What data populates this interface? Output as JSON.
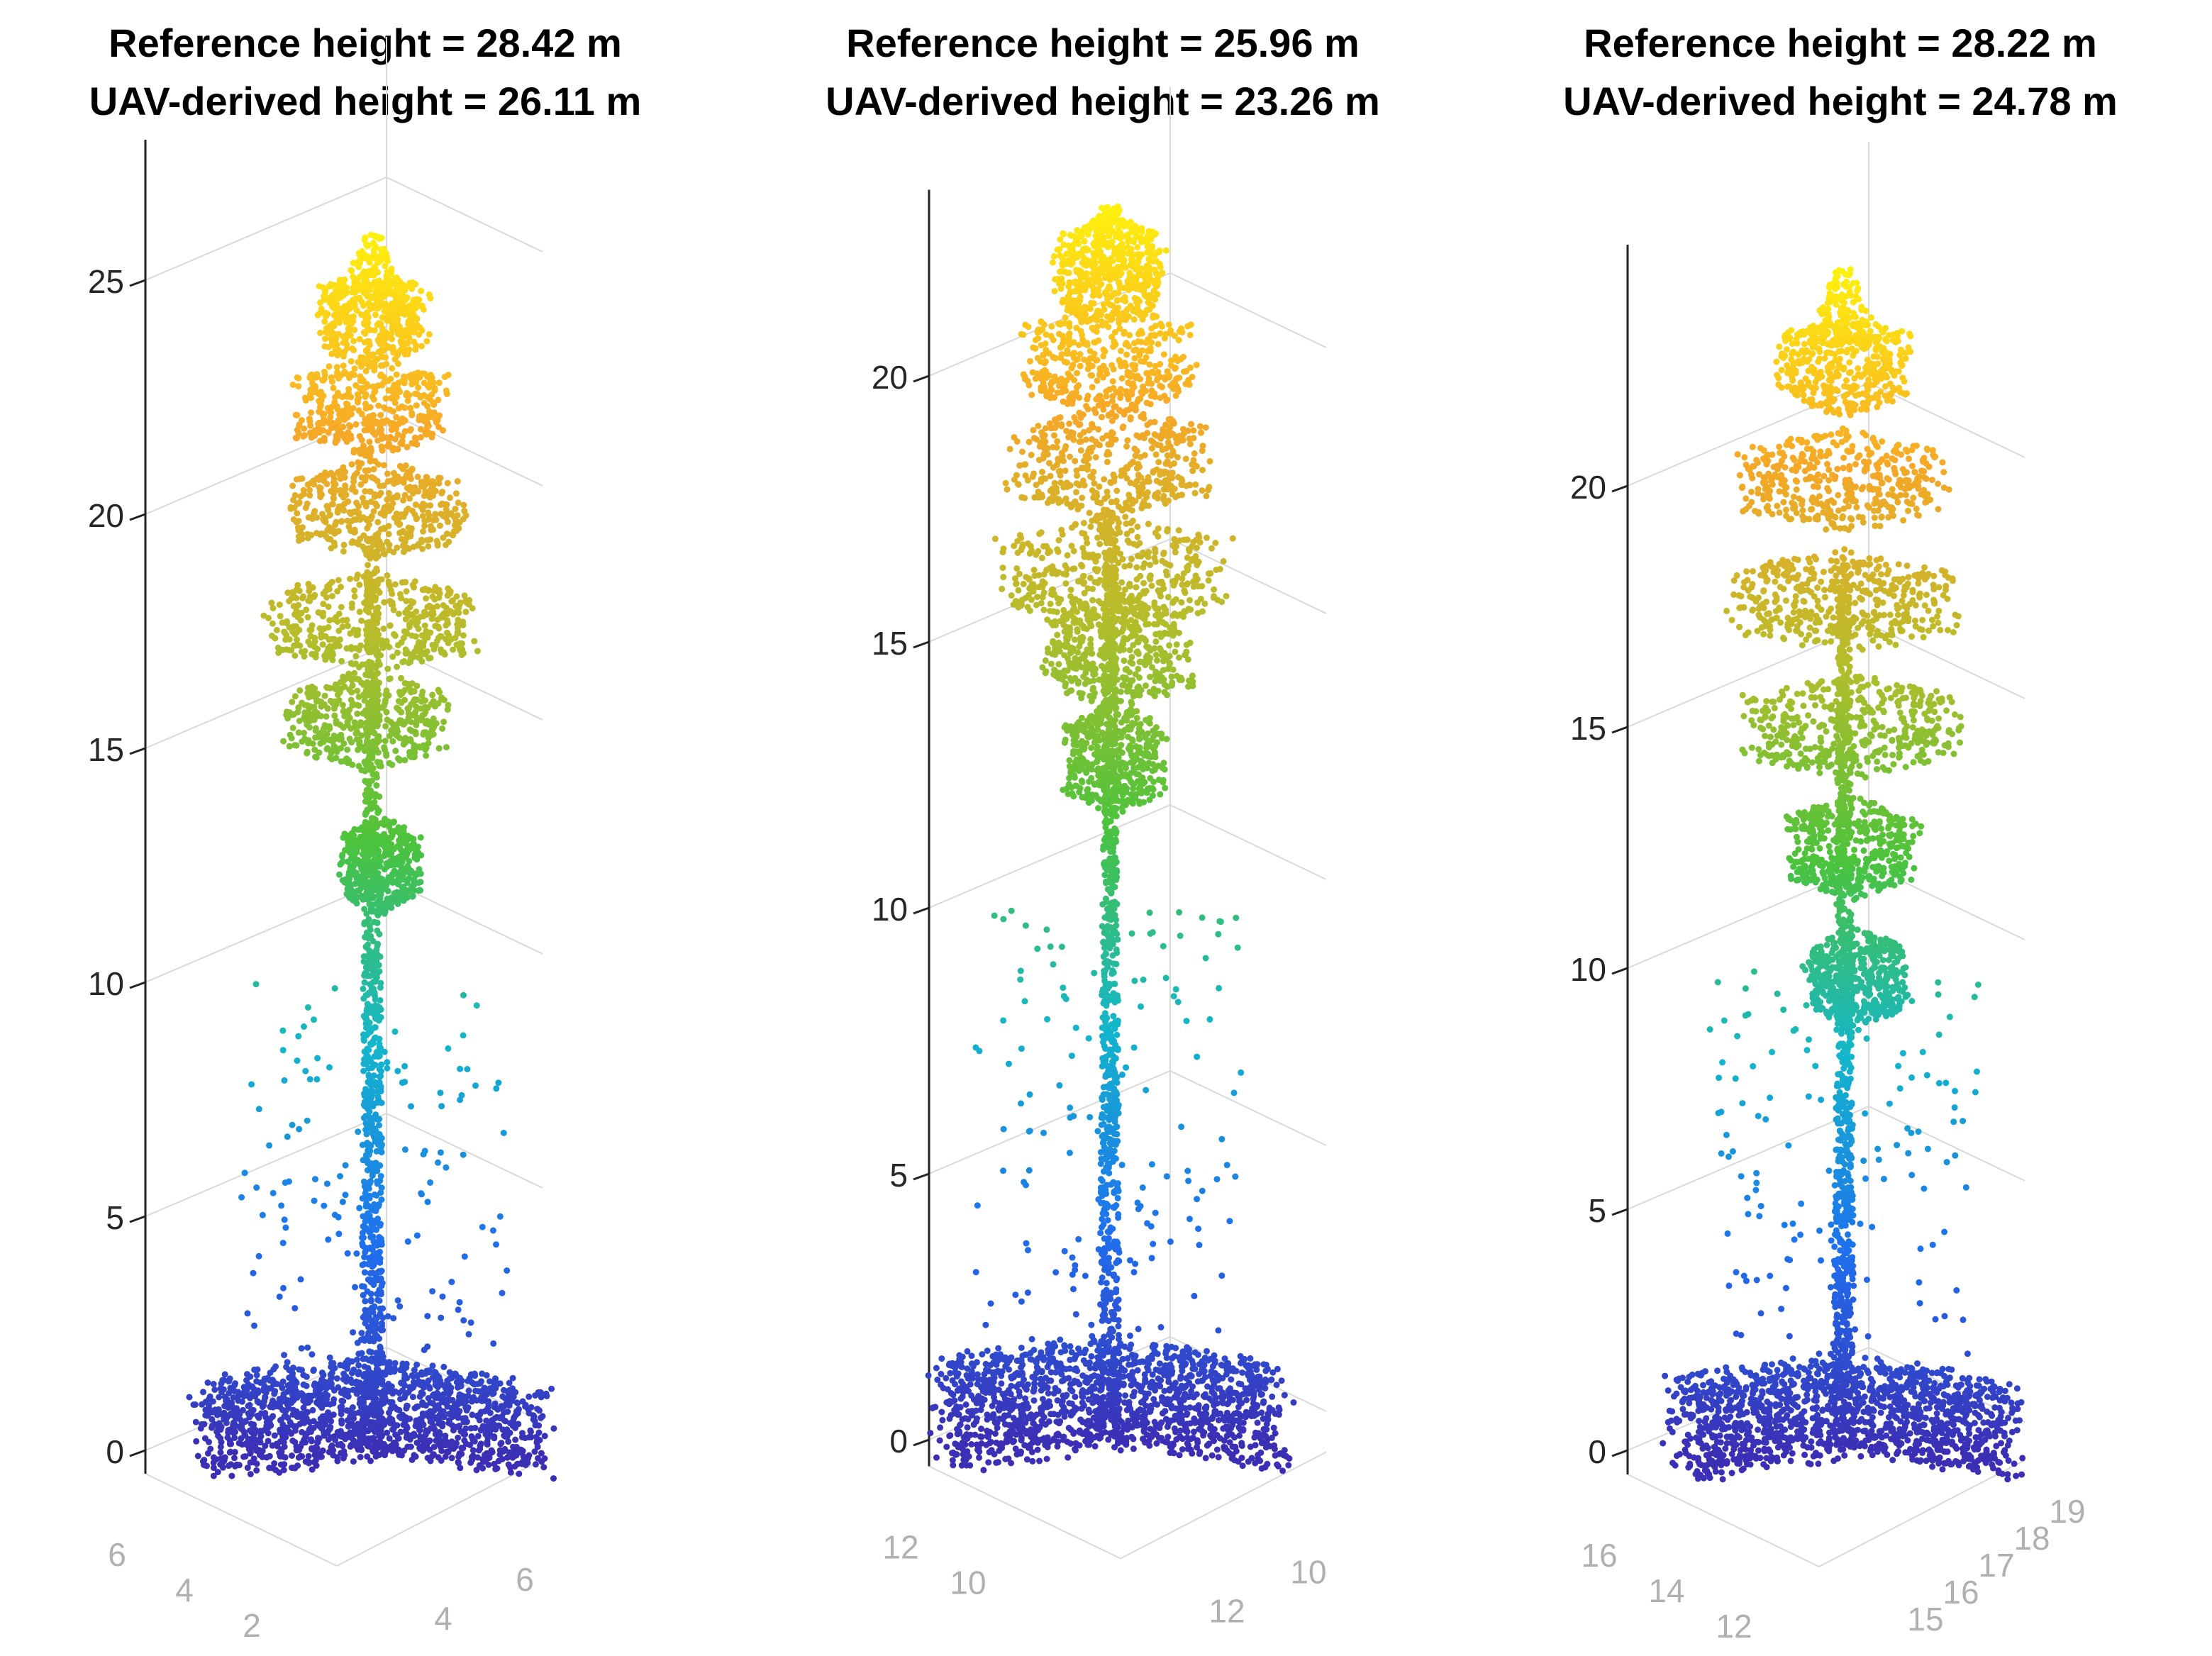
{
  "figure": {
    "description_colors": {
      "ground": "#3b2fb5",
      "lower_trunk": "#1f6fee",
      "mid_trunk": "#13b6cc",
      "lower_crown": "#4cc33c",
      "mid_crown": "#b5bd2a",
      "upper_crown": "#f6a727",
      "top": "#fff10d"
    },
    "axis_colors": {
      "vertical_axis": "#222222",
      "grid": "#d9d9d9",
      "horizontal_tick_text": "#b0b0b0",
      "vertical_tick_text": "#262626"
    }
  },
  "chart_data": [
    {
      "type": "scatter",
      "title": [
        "Reference height = 28.42 m",
        "UAV-derived height = 26.11 m"
      ],
      "reference_height_m": 28.42,
      "uav_height_m": 26.11,
      "zlim": [
        -0.5,
        28
      ],
      "z_ticks": [
        0,
        5,
        10,
        15,
        20,
        25
      ],
      "x_ticks_left": [
        "6",
        "4",
        "2"
      ],
      "x_ticks_right": [
        "4",
        "6"
      ],
      "tree_top_z": 26,
      "trunk_width": 0.6,
      "crown_layers": [
        {
          "z": 12.5,
          "w": 2.2,
          "off": 0.2
        },
        {
          "z": 15.6,
          "w": 4.4,
          "off": -0.2
        },
        {
          "z": 17.7,
          "w": 5.8,
          "off": 0.0
        },
        {
          "z": 20.1,
          "w": 4.8,
          "off": 0.1
        },
        {
          "z": 22.3,
          "w": 4.2,
          "off": 0.0
        },
        {
          "z": 24.2,
          "w": 3.0,
          "off": 0.0
        }
      ]
    },
    {
      "type": "scatter",
      "title": [
        "Reference height = 25.96 m",
        "UAV-derived height = 23.26 m"
      ],
      "reference_height_m": 25.96,
      "uav_height_m": 23.26,
      "zlim": [
        -0.5,
        23.5
      ],
      "z_ticks": [
        0,
        5,
        10,
        15,
        20
      ],
      "x_ticks_left": [
        "12",
        "10"
      ],
      "x_ticks_right": [
        "12",
        "10"
      ],
      "tree_top_z": 23.2,
      "trunk_width": 0.55,
      "crown_layers": [
        {
          "z": 12.8,
          "w": 2.8,
          "off": 0.1
        },
        {
          "z": 14.8,
          "w": 4.0,
          "off": 0.2
        },
        {
          "z": 16.3,
          "w": 6.2,
          "off": 0.1
        },
        {
          "z": 18.4,
          "w": 5.4,
          "off": 0.0
        },
        {
          "z": 20.3,
          "w": 4.6,
          "off": 0.0
        },
        {
          "z": 22.0,
          "w": 3.0,
          "off": 0.0
        }
      ]
    },
    {
      "type": "scatter",
      "title": [
        "Reference height = 28.22 m",
        "UAV-derived height = 24.78 m"
      ],
      "reference_height_m": 28.22,
      "uav_height_m": 24.78,
      "zlim": [
        -0.5,
        25
      ],
      "z_ticks": [
        0,
        5,
        10,
        15,
        20
      ],
      "x_ticks_left": [
        "16",
        "14",
        "12"
      ],
      "x_ticks_right": [
        "15",
        "16",
        "17",
        "18",
        "19"
      ],
      "tree_top_z": 24.5,
      "trunk_width": 0.55,
      "crown_layers": [
        {
          "z": 9.8,
          "w": 2.8,
          "off": 0.3
        },
        {
          "z": 12.5,
          "w": 3.6,
          "off": 0.2
        },
        {
          "z": 15.0,
          "w": 6.0,
          "off": 0.2
        },
        {
          "z": 17.6,
          "w": 6.2,
          "off": 0.0
        },
        {
          "z": 20.1,
          "w": 5.6,
          "off": 0.0
        },
        {
          "z": 22.5,
          "w": 3.6,
          "off": 0.0
        }
      ]
    }
  ]
}
